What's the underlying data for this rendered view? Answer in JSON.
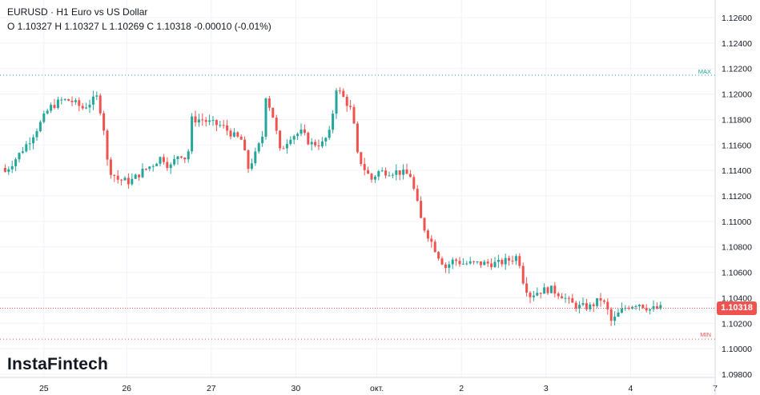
{
  "header": {
    "title": "EURUSD · H1 Euro vs US Dollar",
    "ohlc": "O 1.10327 H 1.10327 L 1.10269 C 1.10318  -0.00010 (-0.01%)"
  },
  "watermark": "InstaFintech",
  "colors": {
    "up": "#26a69a",
    "down": "#ef5350",
    "grid": "#f0f3fa",
    "max": "#26a69a",
    "min": "#ef5350"
  },
  "chart_data": {
    "type": "candlestick",
    "symbol": "EURUSD",
    "timeframe": "H1",
    "ylim": [
      1.098,
      1.127
    ],
    "y_ticks": [
      "1.12600",
      "1.12400",
      "1.12200",
      "1.12000",
      "1.11800",
      "1.11600",
      "1.11400",
      "1.11200",
      "1.11000",
      "1.10800",
      "1.10600",
      "1.10400",
      "1.10200",
      "1.10000",
      "1.09800"
    ],
    "x_ticks": [
      {
        "label": "25",
        "hour": 12
      },
      {
        "label": "26",
        "hour": 35.5
      },
      {
        "label": "27",
        "hour": 59.5
      },
      {
        "label": "30",
        "hour": 83.5
      },
      {
        "label": "окт.",
        "hour": 106.5
      },
      {
        "label": "2",
        "hour": 130.5
      },
      {
        "label": "3",
        "hour": 154.5
      },
      {
        "label": "4",
        "hour": 178.5
      },
      {
        "label": "7",
        "hour": 202.5
      }
    ],
    "close_path": [
      [
        0,
        1.1142
      ],
      [
        1,
        1.1139
      ],
      [
        4.5,
        1.1151
      ],
      [
        8,
        1.1164
      ],
      [
        11,
        1.1177
      ],
      [
        13.5,
        1.1189
      ],
      [
        17,
        1.1195
      ],
      [
        19.5,
        1.1195
      ],
      [
        23,
        1.1189
      ],
      [
        25,
        1.1193
      ],
      [
        27.3,
        1.1198
      ],
      [
        29,
        1.1173
      ],
      [
        30.2,
        1.1142
      ],
      [
        33,
        1.1133
      ],
      [
        36.4,
        1.1131
      ],
      [
        39.8,
        1.1139
      ],
      [
        43,
        1.1145
      ],
      [
        45.5,
        1.1151
      ],
      [
        47.7,
        1.1142
      ],
      [
        50.5,
        1.1154
      ],
      [
        52.7,
        1.1148
      ],
      [
        54,
        1.118
      ],
      [
        56.8,
        1.118
      ],
      [
        59.5,
        1.1177
      ],
      [
        62.5,
        1.1175
      ],
      [
        66,
        1.1167
      ],
      [
        68,
        1.1164
      ],
      [
        70,
        1.1142
      ],
      [
        72.3,
        1.1154
      ],
      [
        74,
        1.1167
      ],
      [
        75,
        1.1199
      ],
      [
        77.3,
        1.118
      ],
      [
        79,
        1.1155
      ],
      [
        82,
        1.1167
      ],
      [
        85.2,
        1.117
      ],
      [
        87.5,
        1.1161
      ],
      [
        91,
        1.1161
      ],
      [
        93.2,
        1.117
      ],
      [
        95,
        1.1205
      ],
      [
        97.3,
        1.1196
      ],
      [
        99.5,
        1.1186
      ],
      [
        101,
        1.1152
      ],
      [
        103.4,
        1.1139
      ],
      [
        105,
        1.1133
      ],
      [
        106.8,
        1.1139
      ],
      [
        109,
        1.1139
      ],
      [
        112.5,
        1.1139
      ],
      [
        116,
        1.1136
      ],
      [
        117.7,
        1.1117
      ],
      [
        119.3,
        1.1098
      ],
      [
        121.6,
        1.1086
      ],
      [
        124,
        1.1073
      ],
      [
        126,
        1.1064
      ],
      [
        128.4,
        1.107
      ],
      [
        130.7,
        1.1067
      ],
      [
        134,
        1.1067
      ],
      [
        137.5,
        1.1067
      ],
      [
        141,
        1.1067
      ],
      [
        144.3,
        1.107
      ],
      [
        146.6,
        1.1073
      ],
      [
        148.2,
        1.1051
      ],
      [
        150,
        1.1042
      ],
      [
        152.3,
        1.1045
      ],
      [
        155.7,
        1.1047
      ],
      [
        159,
        1.1042
      ],
      [
        161.4,
        1.1036
      ],
      [
        163.6,
        1.1033
      ],
      [
        167,
        1.1033
      ],
      [
        170,
        1.1039
      ],
      [
        171.6,
        1.1033
      ],
      [
        173.2,
        1.102
      ],
      [
        174.5,
        1.1026
      ],
      [
        177.3,
        1.1033
      ],
      [
        180.7,
        1.1036
      ],
      [
        184,
        1.1031
      ],
      [
        187.5,
        1.1032
      ]
    ],
    "current_price": "1.10318",
    "max": {
      "label": "MAX",
      "value": 1.12148
    },
    "min": {
      "label": "MIN",
      "value": 1.10076
    }
  }
}
